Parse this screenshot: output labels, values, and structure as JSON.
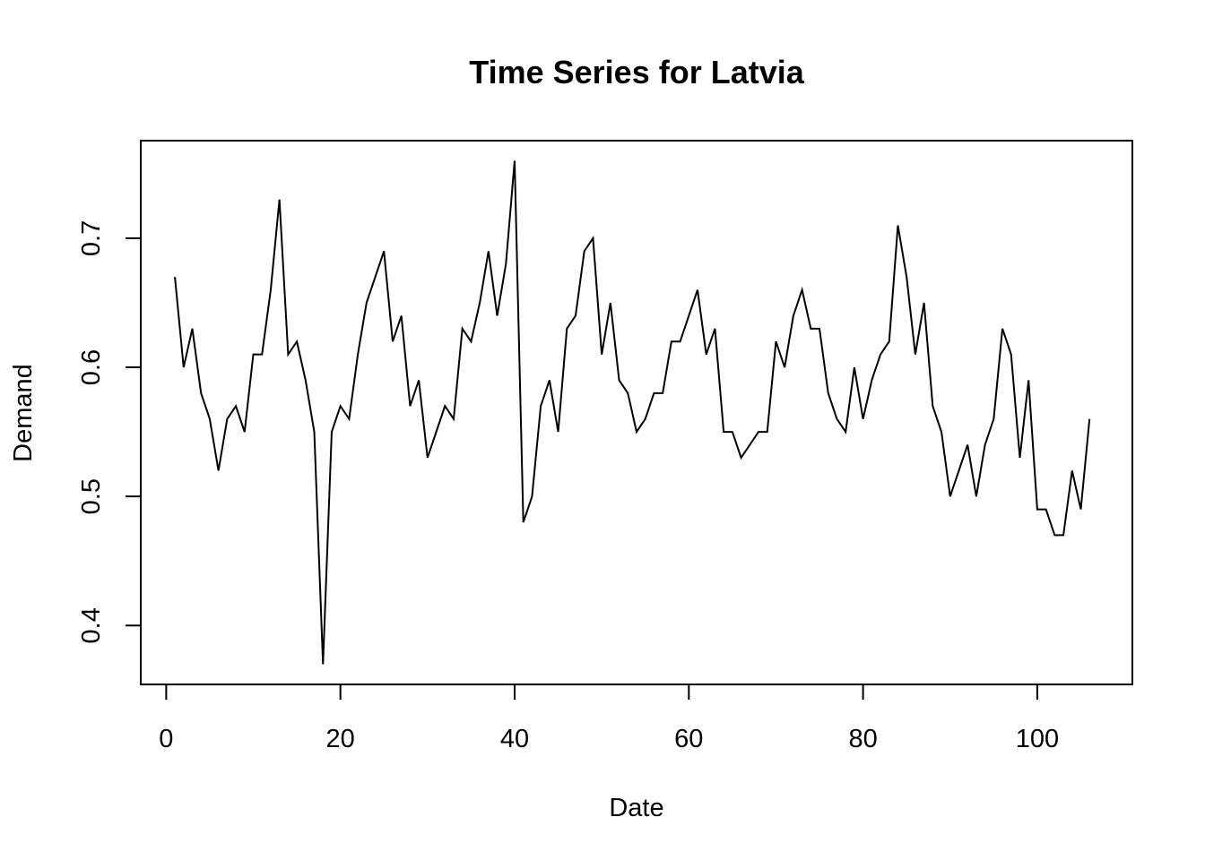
{
  "chart_data": {
    "type": "line",
    "title": "Time Series for Latvia",
    "xlabel": "Date",
    "ylabel": "Demand",
    "xlim": [
      -2.92,
      110.92
    ],
    "ylim": [
      0.3544,
      0.7756
    ],
    "xticks": [
      0,
      20,
      40,
      60,
      80,
      100
    ],
    "xtick_labels": [
      "0",
      "20",
      "40",
      "60",
      "80",
      "100"
    ],
    "yticks": [
      0.4,
      0.5,
      0.6,
      0.7
    ],
    "ytick_labels": [
      "0.4",
      "0.5",
      "0.6",
      "0.7"
    ],
    "grid": false,
    "line_color": "#000000",
    "series": [
      {
        "x": [
          1,
          2,
          3,
          4,
          5,
          6,
          7,
          8,
          9,
          10,
          11,
          12,
          13,
          14,
          15,
          16,
          17,
          18,
          19,
          20,
          21,
          22,
          23,
          24,
          25,
          26,
          27,
          28,
          29,
          30,
          31,
          32,
          33,
          34,
          35,
          36,
          37,
          38,
          39,
          40,
          41,
          42,
          43,
          44,
          45,
          46,
          47,
          48,
          49,
          50,
          51,
          52,
          53,
          54,
          55,
          56,
          57,
          58,
          59,
          60,
          61,
          62,
          63,
          64,
          65,
          66,
          67,
          68,
          69,
          70,
          71,
          72,
          73,
          74,
          75,
          76,
          77,
          78,
          79,
          80,
          81,
          82,
          83,
          84,
          85,
          86,
          87,
          88,
          89,
          90,
          91,
          92,
          93,
          94,
          95,
          96,
          97,
          98,
          99,
          100,
          101,
          102,
          103,
          104,
          105,
          106
        ],
        "values": [
          0.67,
          0.6,
          0.63,
          0.58,
          0.56,
          0.52,
          0.56,
          0.57,
          0.55,
          0.61,
          0.61,
          0.66,
          0.73,
          0.61,
          0.62,
          0.59,
          0.55,
          0.37,
          0.55,
          0.57,
          0.56,
          0.61,
          0.65,
          0.67,
          0.69,
          0.62,
          0.64,
          0.57,
          0.59,
          0.53,
          0.55,
          0.57,
          0.56,
          0.63,
          0.62,
          0.65,
          0.69,
          0.64,
          0.68,
          0.76,
          0.48,
          0.5,
          0.57,
          0.59,
          0.55,
          0.63,
          0.64,
          0.69,
          0.7,
          0.61,
          0.65,
          0.59,
          0.58,
          0.55,
          0.56,
          0.58,
          0.58,
          0.62,
          0.62,
          0.64,
          0.66,
          0.61,
          0.63,
          0.55,
          0.55,
          0.53,
          0.54,
          0.55,
          0.55,
          0.62,
          0.6,
          0.64,
          0.66,
          0.63,
          0.63,
          0.58,
          0.56,
          0.55,
          0.6,
          0.56,
          0.59,
          0.61,
          0.62,
          0.71,
          0.67,
          0.61,
          0.65,
          0.57,
          0.55,
          0.5,
          0.52,
          0.54,
          0.5,
          0.54,
          0.56,
          0.63,
          0.61,
          0.53,
          0.59,
          0.49,
          0.49,
          0.47,
          0.47,
          0.52,
          0.49,
          0.56
        ]
      }
    ]
  }
}
